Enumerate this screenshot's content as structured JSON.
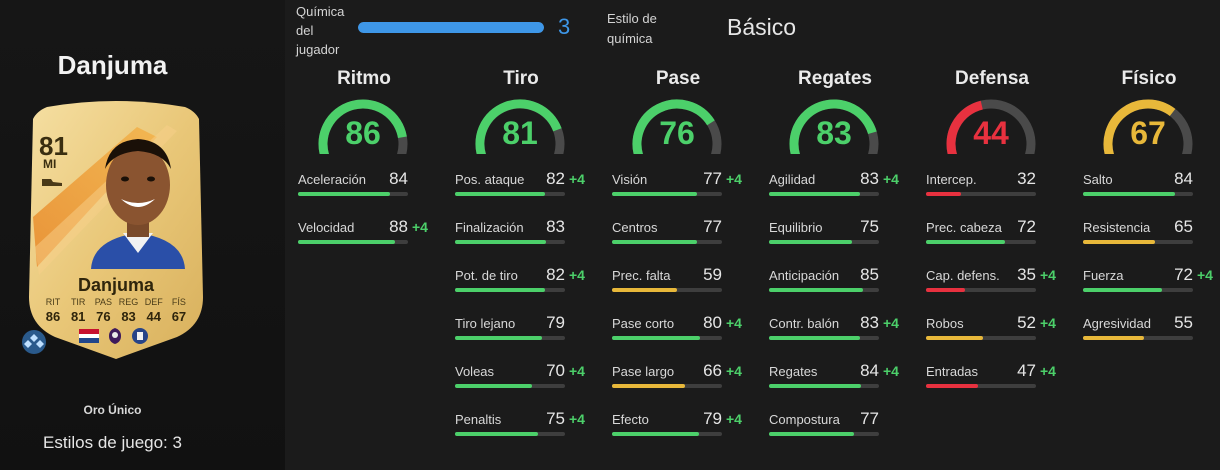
{
  "player": {
    "title": "Danjuma",
    "card": {
      "rating": "81",
      "position": "MI",
      "name": "Danjuma",
      "stats": [
        {
          "label": "RIT",
          "value": "86"
        },
        {
          "label": "TIR",
          "value": "81"
        },
        {
          "label": "PAS",
          "value": "76"
        },
        {
          "label": "REG",
          "value": "83"
        },
        {
          "label": "DEF",
          "value": "44"
        },
        {
          "label": "FÍS",
          "value": "67"
        }
      ]
    },
    "card_type": "Oro Único",
    "playstyles": "Estilos de juego: 3"
  },
  "chemistry": {
    "label": [
      "Química",
      "del",
      "jugador"
    ],
    "value": "3",
    "fill_fraction": 1.0,
    "style_label": [
      "Estilo de",
      "química"
    ],
    "style_value": "Básico"
  },
  "colors": {
    "green": "#4cd06a",
    "yellow": "#e8b83a",
    "red": "#e8313f",
    "blue": "#3e97e8"
  },
  "columns": [
    {
      "title": "Ritmo",
      "value": "86",
      "color": "#4cd06a",
      "stats": [
        {
          "name": "Aceleración",
          "value": "84",
          "boost": ""
        },
        {
          "name": "Velocidad",
          "value": "88",
          "boost": "+4"
        }
      ]
    },
    {
      "title": "Tiro",
      "value": "81",
      "color": "#4cd06a",
      "stats": [
        {
          "name": "Pos. ataque",
          "value": "82",
          "boost": "+4"
        },
        {
          "name": "Finalización",
          "value": "83",
          "boost": ""
        },
        {
          "name": "Pot. de tiro",
          "value": "82",
          "boost": "+4"
        },
        {
          "name": "Tiro lejano",
          "value": "79",
          "boost": ""
        },
        {
          "name": "Voleas",
          "value": "70",
          "boost": "+4"
        },
        {
          "name": "Penaltis",
          "value": "75",
          "boost": "+4"
        }
      ]
    },
    {
      "title": "Pase",
      "value": "76",
      "color": "#4cd06a",
      "stats": [
        {
          "name": "Visión",
          "value": "77",
          "boost": "+4"
        },
        {
          "name": "Centros",
          "value": "77",
          "boost": ""
        },
        {
          "name": "Prec. falta",
          "value": "59",
          "boost": ""
        },
        {
          "name": "Pase corto",
          "value": "80",
          "boost": "+4"
        },
        {
          "name": "Pase largo",
          "value": "66",
          "boost": "+4"
        },
        {
          "name": "Efecto",
          "value": "79",
          "boost": "+4"
        }
      ]
    },
    {
      "title": "Regates",
      "value": "83",
      "color": "#4cd06a",
      "stats": [
        {
          "name": "Agilidad",
          "value": "83",
          "boost": "+4"
        },
        {
          "name": "Equilibrio",
          "value": "75",
          "boost": ""
        },
        {
          "name": "Anticipación",
          "value": "85",
          "boost": ""
        },
        {
          "name": "Contr. balón",
          "value": "83",
          "boost": "+4"
        },
        {
          "name": "Regates",
          "value": "84",
          "boost": "+4"
        },
        {
          "name": "Compostura",
          "value": "77",
          "boost": ""
        }
      ]
    },
    {
      "title": "Defensa",
      "value": "44",
      "color": "#e8313f",
      "stats": [
        {
          "name": "Intercep.",
          "value": "32",
          "boost": ""
        },
        {
          "name": "Prec. cabeza",
          "value": "72",
          "boost": ""
        },
        {
          "name": "Cap. defens.",
          "value": "35",
          "boost": "+4"
        },
        {
          "name": "Robos",
          "value": "52",
          "boost": "+4"
        },
        {
          "name": "Entradas",
          "value": "47",
          "boost": "+4"
        }
      ]
    },
    {
      "title": "Físico",
      "value": "67",
      "color": "#e8b83a",
      "stats": [
        {
          "name": "Salto",
          "value": "84",
          "boost": ""
        },
        {
          "name": "Resistencia",
          "value": "65",
          "boost": ""
        },
        {
          "name": "Fuerza",
          "value": "72",
          "boost": "+4"
        },
        {
          "name": "Agresividad",
          "value": "55",
          "boost": ""
        }
      ]
    }
  ]
}
